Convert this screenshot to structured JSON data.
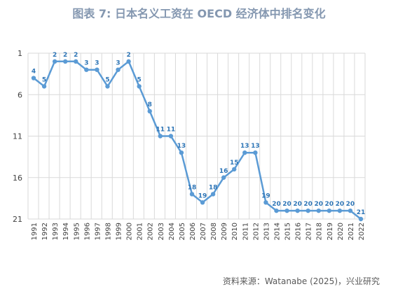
{
  "title": "图表 7:  日本名义工资在 OECD 经济体中排名变化",
  "source": "资料来源：Watanabe (2025)，兴业研究",
  "chart_data": {
    "type": "line",
    "title": "图表 7:  日本名义工资在 OECD 经济体中排名变化",
    "xlabel": "",
    "ylabel": "",
    "x": [
      "1991",
      "1992",
      "1993",
      "1994",
      "1995",
      "1996",
      "1997",
      "1998",
      "1999",
      "2000",
      "2001",
      "2002",
      "2003",
      "2004",
      "2005",
      "2006",
      "2007",
      "2008",
      "2009",
      "2010",
      "2011",
      "2012",
      "2013",
      "2014",
      "2015",
      "2016",
      "2017",
      "2018",
      "2019",
      "2020",
      "2021",
      "2022"
    ],
    "series": [
      {
        "values": [
          4,
          5,
          2,
          2,
          2,
          3,
          3,
          5,
          3,
          2,
          5,
          8,
          11,
          11,
          13,
          18,
          19,
          18,
          16,
          15,
          13,
          13,
          19,
          20,
          20,
          20,
          20,
          20,
          20,
          20,
          20,
          21
        ]
      }
    ],
    "y_ticks": [
      1,
      6,
      11,
      16,
      21
    ],
    "ylim": [
      1,
      21
    ],
    "y_inverted": true,
    "grid": true,
    "legend": "none",
    "data_labels_shown": [
      4,
      5,
      2,
      2,
      2,
      3,
      3,
      5,
      3,
      2,
      5,
      8,
      11,
      11,
      13,
      18,
      19,
      18,
      16,
      15,
      13,
      13,
      19,
      20,
      20,
      20,
      20,
      20,
      20,
      20,
      20,
      21
    ],
    "line_color": "#5b9bd5",
    "label_color": "#2e75b6"
  }
}
